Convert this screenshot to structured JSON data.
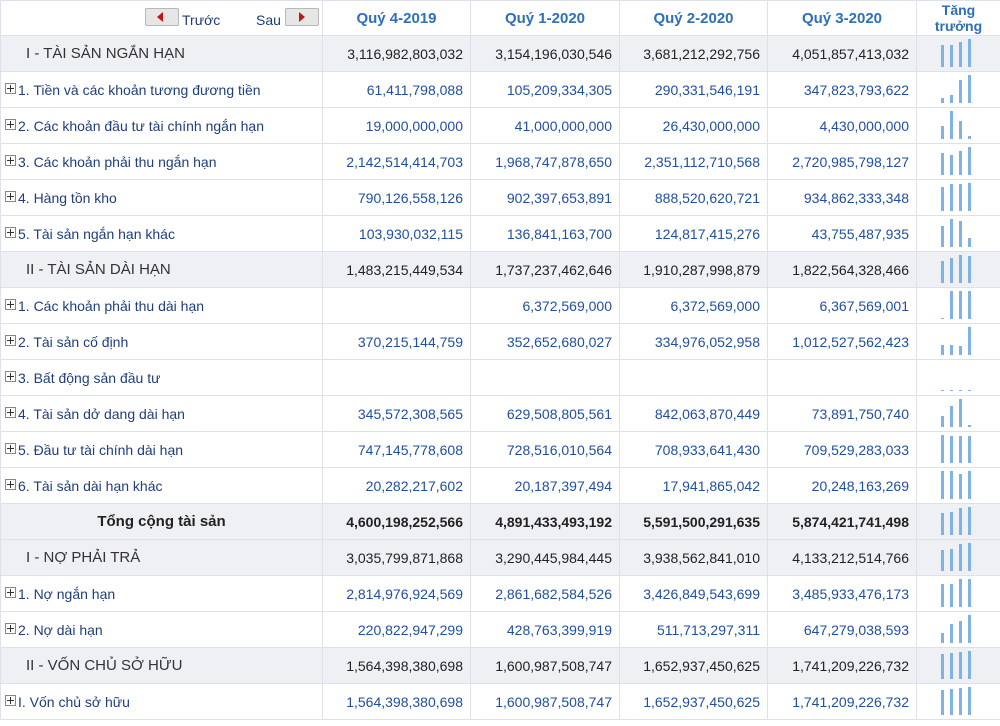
{
  "header": {
    "prev_label": "Trước",
    "next_label": "Sau",
    "periods": [
      "Quý 4-2019",
      "Quý 1-2020",
      "Quý 2-2020",
      "Quý 3-2020"
    ],
    "growth_line1": "Tăng",
    "growth_line2": "trưởng"
  },
  "rows": [
    {
      "name": "I - TÀI SẢN NGẮN HẠN",
      "values": [
        "3,116,982,803,032",
        "3,154,196,030,546",
        "3,681,212,292,756",
        "4,051,857,413,032"
      ]
    },
    {
      "name": "1. Tiền và các khoản tương đương tiền",
      "values": [
        "61,411,798,088",
        "105,209,334,305",
        "290,331,546,191",
        "347,823,793,622"
      ]
    },
    {
      "name": "2. Các khoản đầu tư tài chính ngắn hạn",
      "values": [
        "19,000,000,000",
        "41,000,000,000",
        "26,430,000,000",
        "4,430,000,000"
      ]
    },
    {
      "name": "3. Các khoản phải thu ngắn hạn",
      "values": [
        "2,142,514,414,703",
        "1,968,747,878,650",
        "2,351,112,710,568",
        "2,720,985,798,127"
      ]
    },
    {
      "name": "4. Hàng tồn kho",
      "values": [
        "790,126,558,126",
        "902,397,653,891",
        "888,520,620,721",
        "934,862,333,348"
      ]
    },
    {
      "name": "5. Tài sản ngắn hạn khác",
      "values": [
        "103,930,032,115",
        "136,841,163,700",
        "124,817,415,276",
        "43,755,487,935"
      ]
    },
    {
      "name": "II - TÀI SẢN DÀI HẠN",
      "values": [
        "1,483,215,449,534",
        "1,737,237,462,646",
        "1,910,287,998,879",
        "1,822,564,328,466"
      ]
    },
    {
      "name": "1. Các khoản phải thu dài hạn",
      "values": [
        "",
        "6,372,569,000",
        "6,372,569,000",
        "6,367,569,001"
      ]
    },
    {
      "name": "2. Tài sản cố định",
      "values": [
        "370,215,144,759",
        "352,652,680,027",
        "334,976,052,958",
        "1,012,527,562,423"
      ]
    },
    {
      "name": "3. Bất động sản đầu tư",
      "values": [
        "",
        "",
        "",
        ""
      ]
    },
    {
      "name": "4. Tài sản dở dang dài hạn",
      "values": [
        "345,572,308,565",
        "629,508,805,561",
        "842,063,870,449",
        "73,891,750,740"
      ]
    },
    {
      "name": "5. Đầu tư tài chính dài hạn",
      "values": [
        "747,145,778,608",
        "728,516,010,564",
        "708,933,641,430",
        "709,529,283,033"
      ]
    },
    {
      "name": "6. Tài sản dài hạn khác",
      "values": [
        "20,282,217,602",
        "20,187,397,494",
        "17,941,865,042",
        "20,248,163,269"
      ]
    },
    {
      "name": "Tổng cộng tài sản",
      "values": [
        "4,600,198,252,566",
        "4,891,433,493,192",
        "5,591,500,291,635",
        "5,874,421,741,498"
      ]
    },
    {
      "name": "I - NỢ PHẢI TRẢ",
      "values": [
        "3,035,799,871,868",
        "3,290,445,984,445",
        "3,938,562,841,010",
        "4,133,212,514,766"
      ]
    },
    {
      "name": "1. Nợ ngắn hạn",
      "values": [
        "2,814,976,924,569",
        "2,861,682,584,526",
        "3,426,849,543,699",
        "3,485,933,476,173"
      ]
    },
    {
      "name": "2. Nợ dài hạn",
      "values": [
        "220,822,947,299",
        "428,763,399,919",
        "511,713,297,311",
        "647,279,038,593"
      ]
    },
    {
      "name": "II - VỐN CHỦ SỞ HỮU",
      "values": [
        "1,564,398,380,698",
        "1,600,987,508,747",
        "1,652,937,450,625",
        "1,741,209,226,732"
      ]
    },
    {
      "name": "I. Vốn chủ sở hữu",
      "values": [
        "1,564,398,380,698",
        "1,600,987,508,747",
        "1,652,937,450,625",
        "1,741,209,226,732"
      ]
    }
  ],
  "colors": {
    "spark_bar": "#7fb2e5",
    "header_text": "#2f6fb8",
    "value_text": "#1f4f9e",
    "section_bg": "#eef0f4"
  }
}
